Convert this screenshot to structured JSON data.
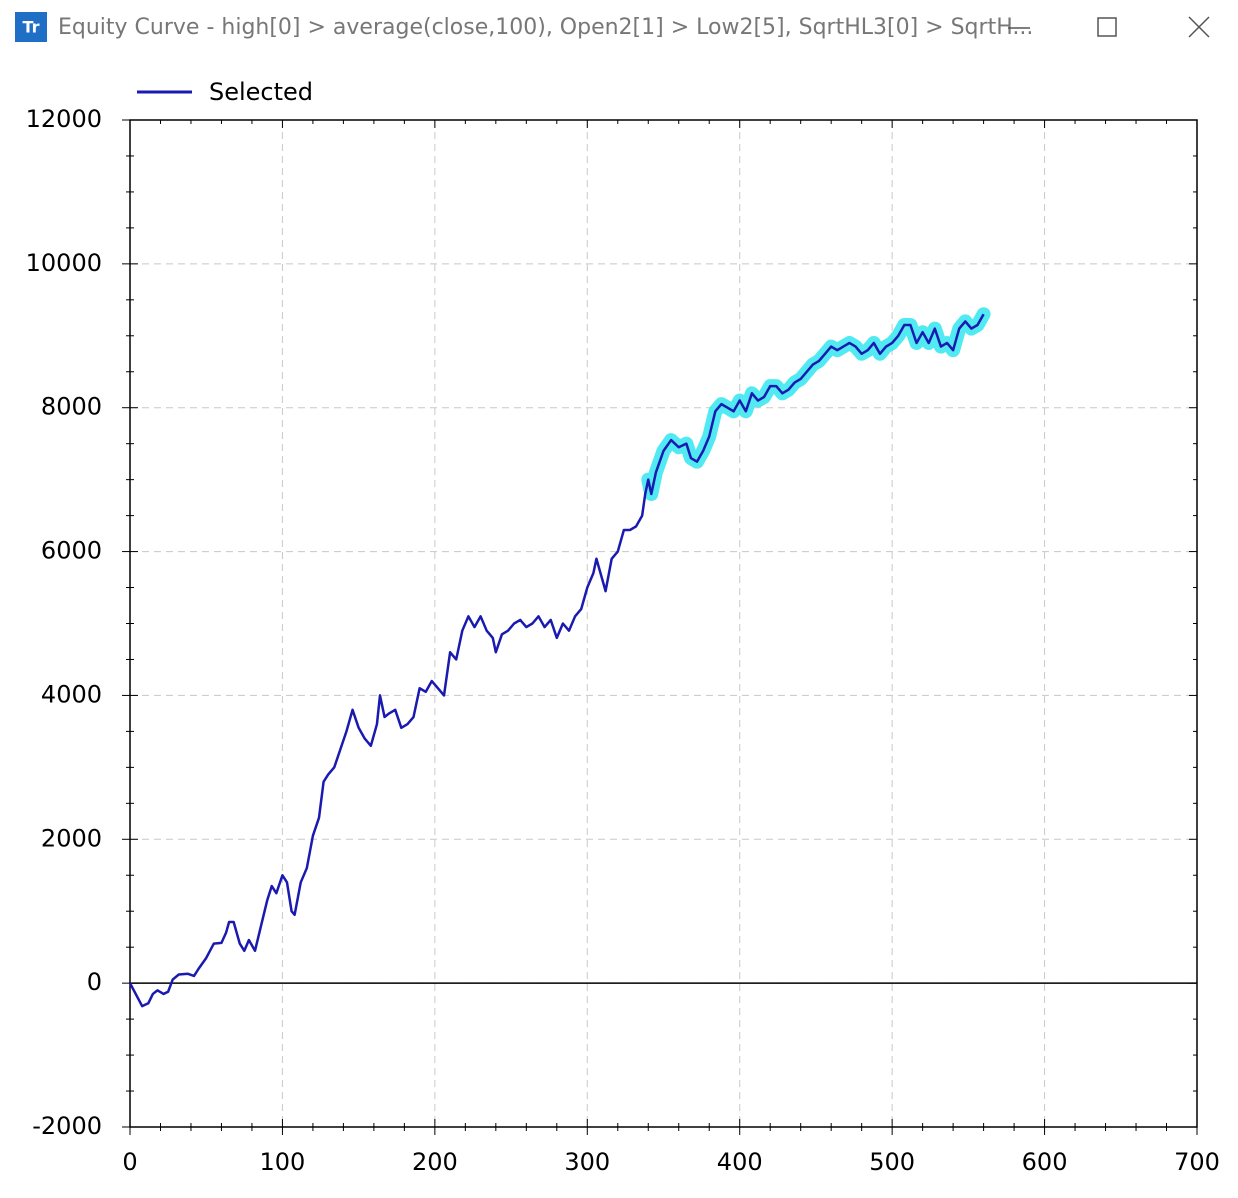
{
  "window": {
    "title": "Equity Curve - high[0] > average(close,100), Open2[1] > Low2[5], SqrtHL3[0] > SqrtH..."
  },
  "chart_data": {
    "type": "line",
    "x": [
      0,
      5,
      8,
      12,
      15,
      18,
      22,
      25,
      28,
      32,
      38,
      42,
      45,
      50,
      55,
      60,
      63,
      65,
      68,
      72,
      75,
      78,
      82,
      86,
      90,
      93,
      96,
      100,
      103,
      106,
      108,
      112,
      116,
      120,
      124,
      127,
      130,
      134,
      138,
      142,
      146,
      150,
      154,
      158,
      162,
      164,
      167,
      170,
      174,
      178,
      182,
      186,
      190,
      194,
      198,
      202,
      206,
      210,
      214,
      218,
      222,
      226,
      230,
      234,
      238,
      240,
      244,
      248,
      252,
      256,
      260,
      264,
      268,
      272,
      276,
      280,
      284,
      288,
      292,
      296,
      300,
      304,
      306,
      310,
      312,
      316,
      320,
      324,
      328,
      332,
      336,
      338,
      340,
      342,
      345,
      350,
      355,
      360,
      365,
      368,
      372,
      376,
      380,
      384,
      388,
      392,
      396,
      400,
      404,
      408,
      412,
      416,
      420,
      424,
      428,
      432,
      436,
      440,
      444,
      448,
      452,
      456,
      460,
      464,
      468,
      472,
      476,
      480,
      484,
      488,
      492,
      496,
      500,
      504,
      508,
      512,
      516,
      520,
      524,
      528,
      532,
      536,
      540,
      544,
      548,
      552,
      556,
      560
    ],
    "series": [
      {
        "name": "Selected",
        "color": "#1a1ab0",
        "values": [
          0,
          -200,
          -320,
          -280,
          -150,
          -100,
          -150,
          -120,
          50,
          120,
          130,
          100,
          200,
          350,
          550,
          560,
          700,
          850,
          850,
          550,
          450,
          600,
          450,
          800,
          1150,
          1350,
          1250,
          1500,
          1400,
          1000,
          950,
          1400,
          1600,
          2050,
          2300,
          2800,
          2900,
          3000,
          3250,
          3500,
          3800,
          3550,
          3400,
          3300,
          3600,
          4000,
          3700,
          3750,
          3800,
          3550,
          3600,
          3700,
          4100,
          4050,
          4200,
          4100,
          4000,
          4600,
          4500,
          4900,
          5100,
          4950,
          5100,
          4900,
          4800,
          4600,
          4850,
          4900,
          5000,
          5050,
          4950,
          5000,
          5100,
          4950,
          5050,
          4800,
          5000,
          4900,
          5100,
          5200,
          5500,
          5700,
          5900,
          5600,
          5450,
          5900,
          6000,
          6300,
          6300,
          6350,
          6500,
          6800,
          7000,
          6800,
          7100,
          7400,
          7550,
          7450,
          7500,
          7300,
          7250,
          7400,
          7600,
          7950,
          8050,
          8000,
          7950,
          8100,
          7950,
          8200,
          8100,
          8150,
          8300,
          8300,
          8200,
          8250,
          8350,
          8400,
          8500,
          8600,
          8650,
          8750,
          8850,
          8800,
          8850,
          8900,
          8850,
          8750,
          8800,
          8900,
          8750,
          8850,
          8900,
          9000,
          9150,
          9150,
          8900,
          9050,
          8900,
          9100,
          8850,
          8900,
          8800,
          9100,
          9200,
          9100,
          9150,
          9300
        ]
      }
    ],
    "highlight_color": "#33e6f0",
    "highlight_xlim": [
      340,
      560
    ],
    "xlim": [
      0,
      700
    ],
    "xticks": [
      0,
      100,
      200,
      300,
      400,
      500,
      600,
      700
    ],
    "ylim": [
      -2000,
      12000
    ],
    "yticks": [
      -2000,
      0,
      2000,
      4000,
      6000,
      8000,
      10000,
      12000
    ],
    "grid": true,
    "legend": "top-left"
  }
}
